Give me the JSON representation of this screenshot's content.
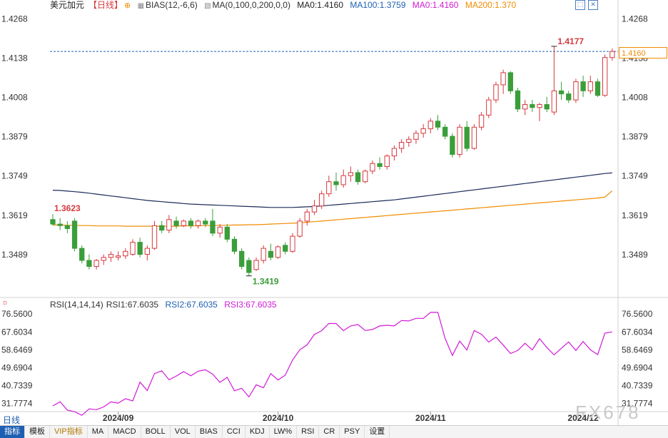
{
  "header": {
    "symbol": "美元加元",
    "period": "【日线】",
    "bias_label": "BIAS(12,-6,6)",
    "ma_label": "MA(0,100,0,200,0,0)",
    "ma0_value": "MA0:1.4160",
    "ma100_value": "MA100:1.3759",
    "ma0_value2": "MA0:1.4160",
    "ma200_value": "MA200:1.370"
  },
  "rsi_header": {
    "label": "RSI(14,14,14)",
    "rsi1": "RSI1:67.6035",
    "rsi2": "RSI2:67.6035",
    "rsi3": "RSI3:67.6035"
  },
  "current_price_badge": "1.4160",
  "period_label": "日线",
  "watermark": "FX678",
  "toolbar": [
    "指标",
    "模板",
    "VIP指标",
    "MA",
    "MACD",
    "BOLL",
    "VOL",
    "BIAS",
    "CCI",
    "KDJ",
    "LW%",
    "RSI",
    "CR",
    "PSY",
    "设置"
  ],
  "colors": {
    "up": "#d6393f",
    "down": "#3a9e3a",
    "ma100": "#1c2b5a",
    "ma200": "#f08c00",
    "rsi": "#d11ad6",
    "accent": "#1e5fb3"
  },
  "chart_data": [
    {
      "type": "candlestick",
      "price_axis": {
        "ylim": [
          1.335,
          1.429
        ],
        "ticks": [
          1.4268,
          1.4138,
          1.4008,
          1.3879,
          1.3749,
          1.3619,
          1.3489
        ],
        "tick_labels": [
          "1.4268",
          "1.4138",
          "1.4008",
          "1.3879",
          "1.3749",
          "1.3619",
          "1.3489"
        ]
      },
      "annotations": [
        {
          "label": "1.4177",
          "value": 1.4177,
          "index": 69
        },
        {
          "label": "1.3623",
          "value": 1.3623,
          "index": 0
        },
        {
          "label": "1.3419",
          "value": 1.3419,
          "index": 27
        }
      ],
      "current_price": 1.416,
      "x_labels": [
        {
          "label": "2024/09",
          "index": 9
        },
        {
          "label": "2024/10",
          "index": 31
        },
        {
          "label": "2024/11",
          "index": 52
        },
        {
          "label": "2024/12",
          "index": 73
        }
      ],
      "ohlc": [
        [
          1.3605,
          1.3623,
          1.3585,
          1.359
        ],
        [
          1.359,
          1.361,
          1.357,
          1.3585
        ],
        [
          1.3585,
          1.36,
          1.356,
          1.3575
        ],
        [
          1.36,
          1.361,
          1.35,
          1.351
        ],
        [
          1.351,
          1.352,
          1.346,
          1.347
        ],
        [
          1.347,
          1.349,
          1.344,
          1.345
        ],
        [
          1.345,
          1.3475,
          1.344,
          1.347
        ],
        [
          1.347,
          1.349,
          1.3455,
          1.348
        ],
        [
          1.348,
          1.35,
          1.3465,
          1.349
        ],
        [
          1.348,
          1.35,
          1.347,
          1.3485
        ],
        [
          1.3485,
          1.351,
          1.3475,
          1.35
        ],
        [
          1.349,
          1.354,
          1.3485,
          1.353
        ],
        [
          1.353,
          1.3545,
          1.348,
          1.349
        ],
        [
          1.349,
          1.352,
          1.347,
          1.351
        ],
        [
          1.351,
          1.36,
          1.3505,
          1.3585
        ],
        [
          1.3585,
          1.36,
          1.356,
          1.357
        ],
        [
          1.357,
          1.362,
          1.356,
          1.3605
        ],
        [
          1.36,
          1.3615,
          1.3575,
          1.3585
        ],
        [
          1.3585,
          1.3605,
          1.358,
          1.36
        ],
        [
          1.36,
          1.361,
          1.3575,
          1.3585
        ],
        [
          1.3585,
          1.3605,
          1.3575,
          1.36
        ],
        [
          1.36,
          1.361,
          1.358,
          1.359
        ],
        [
          1.36,
          1.364,
          1.355,
          1.356
        ],
        [
          1.356,
          1.359,
          1.3545,
          1.358
        ],
        [
          1.358,
          1.359,
          1.353,
          1.354
        ],
        [
          1.354,
          1.355,
          1.349,
          1.35
        ],
        [
          1.35,
          1.351,
          1.344,
          1.345
        ],
        [
          1.347,
          1.348,
          1.3419,
          1.343
        ],
        [
          1.344,
          1.348,
          1.3435,
          1.347
        ],
        [
          1.347,
          1.352,
          1.346,
          1.351
        ],
        [
          1.35,
          1.3525,
          1.347,
          1.348
        ],
        [
          1.348,
          1.352,
          1.3475,
          1.3515
        ],
        [
          1.352,
          1.353,
          1.349,
          1.35
        ],
        [
          1.35,
          1.356,
          1.3495,
          1.355
        ],
        [
          1.355,
          1.361,
          1.3545,
          1.36
        ],
        [
          1.36,
          1.364,
          1.3585,
          1.363
        ],
        [
          1.363,
          1.367,
          1.362,
          1.365
        ],
        [
          1.365,
          1.37,
          1.364,
          1.369
        ],
        [
          1.369,
          1.375,
          1.368,
          1.373
        ],
        [
          1.373,
          1.376,
          1.37,
          1.372
        ],
        [
          1.372,
          1.377,
          1.371,
          1.375
        ],
        [
          1.375,
          1.378,
          1.373,
          1.376
        ],
        [
          1.376,
          1.377,
          1.372,
          1.373
        ],
        [
          1.373,
          1.377,
          1.3725,
          1.3765
        ],
        [
          1.3765,
          1.38,
          1.3755,
          1.379
        ],
        [
          1.379,
          1.381,
          1.377,
          1.378
        ],
        [
          1.378,
          1.382,
          1.377,
          1.3815
        ],
        [
          1.3815,
          1.385,
          1.38,
          1.384
        ],
        [
          1.384,
          1.387,
          1.3825,
          1.386
        ],
        [
          1.386,
          1.388,
          1.3845,
          1.387
        ],
        [
          1.387,
          1.39,
          1.3855,
          1.389
        ],
        [
          1.389,
          1.392,
          1.3875,
          1.3905
        ],
        [
          1.3905,
          1.394,
          1.389,
          1.393
        ],
        [
          1.393,
          1.395,
          1.39,
          1.391
        ],
        [
          1.391,
          1.392,
          1.387,
          1.388
        ],
        [
          1.388,
          1.389,
          1.381,
          1.382
        ],
        [
          1.382,
          1.392,
          1.381,
          1.391
        ],
        [
          1.391,
          1.393,
          1.383,
          1.384
        ],
        [
          1.384,
          1.392,
          1.3835,
          1.391
        ],
        [
          1.391,
          1.396,
          1.39,
          1.395
        ],
        [
          1.395,
          1.401,
          1.394,
          1.4
        ],
        [
          1.4,
          1.406,
          1.399,
          1.405
        ],
        [
          1.405,
          1.41,
          1.402,
          1.409
        ],
        [
          1.409,
          1.4095,
          1.402,
          1.403
        ],
        [
          1.403,
          1.404,
          1.396,
          1.397
        ],
        [
          1.397,
          1.4,
          1.395,
          1.3985
        ],
        [
          1.3985,
          1.4,
          1.396,
          1.3975
        ],
        [
          1.3975,
          1.399,
          1.393,
          1.3985
        ],
        [
          1.3985,
          1.401,
          1.396,
          1.397
        ],
        [
          1.396,
          1.4177,
          1.395,
          1.403
        ],
        [
          1.403,
          1.406,
          1.4,
          1.402
        ],
        [
          1.402,
          1.403,
          1.399,
          1.4
        ],
        [
          1.4,
          1.407,
          1.399,
          1.406
        ],
        [
          1.406,
          1.408,
          1.401,
          1.403
        ],
        [
          1.403,
          1.408,
          1.402,
          1.406
        ],
        [
          1.406,
          1.407,
          1.401,
          1.4015
        ],
        [
          1.4015,
          1.415,
          1.401,
          1.414
        ],
        [
          1.414,
          1.417,
          1.413,
          1.416
        ]
      ],
      "series": [
        {
          "name": "MA100",
          "values": [
            1.3702,
            1.3701,
            1.3699,
            1.3697,
            1.3695,
            1.3692,
            1.3689,
            1.3686,
            1.3683,
            1.368,
            1.3677,
            1.3674,
            1.3671,
            1.3668,
            1.3666,
            1.3664,
            1.3662,
            1.366,
            1.3658,
            1.3656,
            1.3655,
            1.3654,
            1.3653,
            1.3652,
            1.3651,
            1.365,
            1.3649,
            1.3648,
            1.3647,
            1.3646,
            1.3645,
            1.3645,
            1.3645,
            1.3645,
            1.3646,
            1.3647,
            1.3648,
            1.365,
            1.3652,
            1.3654,
            1.3656,
            1.3658,
            1.366,
            1.3662,
            1.3664,
            1.3666,
            1.3668,
            1.367,
            1.3673,
            1.3676,
            1.3679,
            1.3682,
            1.3685,
            1.3688,
            1.3691,
            1.3694,
            1.3697,
            1.37,
            1.3703,
            1.3706,
            1.3709,
            1.3712,
            1.3715,
            1.3718,
            1.3721,
            1.3724,
            1.3727,
            1.373,
            1.3733,
            1.3736,
            1.3739,
            1.3742,
            1.3745,
            1.3748,
            1.3751,
            1.3754,
            1.3757,
            1.3759
          ]
        },
        {
          "name": "MA200",
          "values": [
            1.3587,
            1.3587,
            1.3586,
            1.3586,
            1.3585,
            1.3585,
            1.3584,
            1.3584,
            1.3584,
            1.3584,
            1.3583,
            1.3583,
            1.3583,
            1.3583,
            1.3583,
            1.3583,
            1.3583,
            1.3583,
            1.3584,
            1.3584,
            1.3584,
            1.3585,
            1.3585,
            1.3586,
            1.3586,
            1.3587,
            1.3587,
            1.3588,
            1.3588,
            1.3589,
            1.359,
            1.3591,
            1.3592,
            1.3593,
            1.3594,
            1.3596,
            1.3598,
            1.36,
            1.3602,
            1.3604,
            1.3606,
            1.3608,
            1.361,
            1.3612,
            1.3614,
            1.3616,
            1.3618,
            1.362,
            1.3622,
            1.3624,
            1.3626,
            1.3628,
            1.363,
            1.3632,
            1.3634,
            1.3636,
            1.3638,
            1.364,
            1.3642,
            1.3644,
            1.3646,
            1.3648,
            1.365,
            1.3652,
            1.3654,
            1.3656,
            1.3658,
            1.366,
            1.3662,
            1.3664,
            1.3666,
            1.3668,
            1.367,
            1.3672,
            1.3674,
            1.3676,
            1.3679,
            1.37
          ]
        }
      ]
    },
    {
      "type": "line",
      "name": "RSI",
      "ylim": [
        28.0,
        79.5
      ],
      "ticks": [
        76.56,
        67.6034,
        58.6469,
        49.6904,
        40.7339,
        31.7774
      ],
      "tick_labels": [
        "76.5600",
        "67.6034",
        "58.6469",
        "49.6904",
        "40.7339",
        "31.7774"
      ],
      "values": [
        30.5,
        32.6,
        28.4,
        27.6,
        25.8,
        29.0,
        28.6,
        30.0,
        32.5,
        31.9,
        34.1,
        33.0,
        42.4,
        38.2,
        46.7,
        48.1,
        43.6,
        45.5,
        47.7,
        45.6,
        47.9,
        48.6,
        46.5,
        42.3,
        44.8,
        38.1,
        39.3,
        35.0,
        41.1,
        39.6,
        46.7,
        43.5,
        45.9,
        53.5,
        58.6,
        61.1,
        66.3,
        68.2,
        71.8,
        71.8,
        68.2,
        70.6,
        71.3,
        68.3,
        68.8,
        70.6,
        70.9,
        70.6,
        73.3,
        73.1,
        74.4,
        74.4,
        77.4,
        77.4,
        64.3,
        55.8,
        63.0,
        58.5,
        68.3,
        66.4,
        62.5,
        65.0,
        61.0,
        56.8,
        58.3,
        61.9,
        58.6,
        64.2,
        59.8,
        56.1,
        59.4,
        62.6,
        58.3,
        62.8,
        58.6,
        56.2,
        67.0,
        67.6
      ]
    }
  ]
}
